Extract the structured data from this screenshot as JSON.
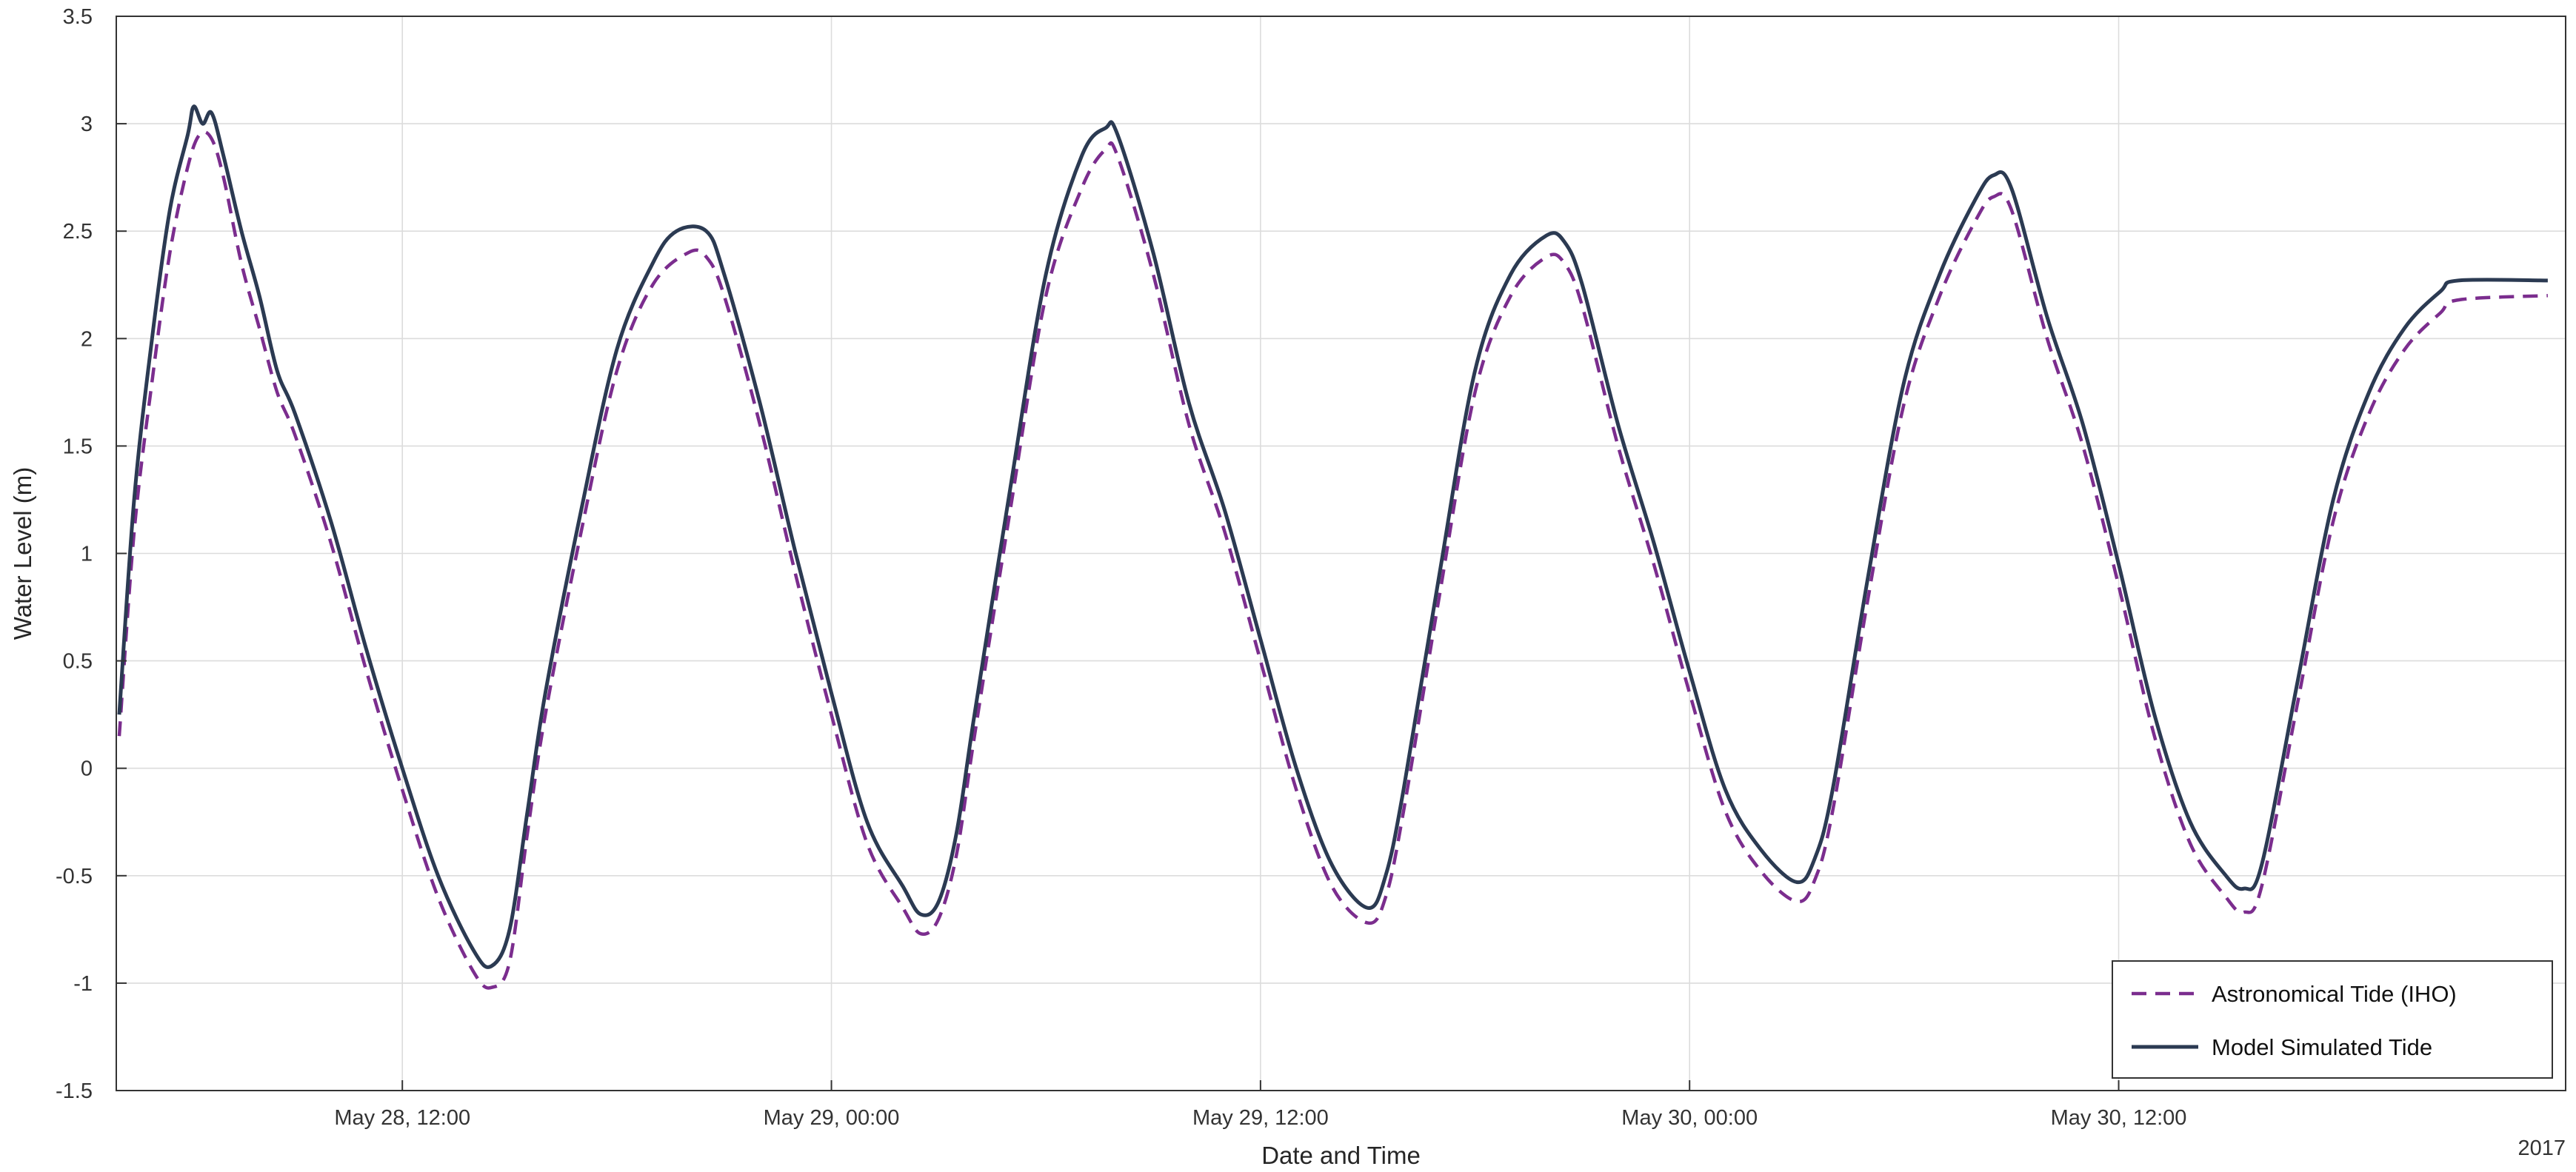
{
  "chart_data": {
    "type": "line",
    "title": "",
    "xlabel": "Date and Time",
    "ylabel": "Water Level (m)",
    "year_label": "2017",
    "grid": true,
    "legend_placement": "bottom-right",
    "xlim": [
      "2017-05-28T04:00",
      "2017-05-31T00:30"
    ],
    "ylim": [
      -1.5,
      3.5
    ],
    "x_ticks": [
      {
        "t": "2017-05-28T12:00",
        "label": "May 28, 12:00"
      },
      {
        "t": "2017-05-29T00:00",
        "label": "May 29, 00:00"
      },
      {
        "t": "2017-05-29T12:00",
        "label": "May 29, 12:00"
      },
      {
        "t": "2017-05-30T00:00",
        "label": "May 30, 00:00"
      },
      {
        "t": "2017-05-30T12:00",
        "label": "May 30, 12:00"
      }
    ],
    "y_ticks": [
      {
        "v": -1.5,
        "label": "-1.5"
      },
      {
        "v": -1,
        "label": "-1"
      },
      {
        "v": -0.5,
        "label": "-0.5"
      },
      {
        "v": 0,
        "label": "0"
      },
      {
        "v": 0.5,
        "label": "0.5"
      },
      {
        "v": 1,
        "label": "1"
      },
      {
        "v": 1.5,
        "label": "1.5"
      },
      {
        "v": 2,
        "label": "2"
      },
      {
        "v": 2.5,
        "label": "2.5"
      },
      {
        "v": 3,
        "label": "3"
      },
      {
        "v": 3.5,
        "label": "3.5"
      }
    ],
    "series": [
      {
        "name": "Astronomical Tide (IHO)",
        "color": "#7b2d8e",
        "style": "dashed",
        "points": [
          [
            "2017-05-28T04:05",
            0.15
          ],
          [
            "2017-05-28T04:30",
            1.1
          ],
          [
            "2017-05-28T05:00",
            1.8
          ],
          [
            "2017-05-28T05:30",
            2.4
          ],
          [
            "2017-05-28T06:00",
            2.8
          ],
          [
            "2017-05-28T06:20",
            2.95
          ],
          [
            "2017-05-28T06:40",
            2.93
          ],
          [
            "2017-05-28T07:00",
            2.75
          ],
          [
            "2017-05-28T07:30",
            2.35
          ],
          [
            "2017-05-28T08:00",
            2.05
          ],
          [
            "2017-05-28T08:30",
            1.75
          ],
          [
            "2017-05-28T09:00",
            1.55
          ],
          [
            "2017-05-28T10:00",
            1.05
          ],
          [
            "2017-05-28T11:00",
            0.45
          ],
          [
            "2017-05-28T12:00",
            -0.1
          ],
          [
            "2017-05-28T13:00",
            -0.6
          ],
          [
            "2017-05-28T14:00",
            -0.95
          ],
          [
            "2017-05-28T14:30",
            -1.02
          ],
          [
            "2017-05-28T15:00",
            -0.9
          ],
          [
            "2017-05-28T15:30",
            -0.3
          ],
          [
            "2017-05-28T16:00",
            0.25
          ],
          [
            "2017-05-28T17:00",
            1.1
          ],
          [
            "2017-05-28T18:00",
            1.85
          ],
          [
            "2017-05-28T19:00",
            2.25
          ],
          [
            "2017-05-28T20:00",
            2.4
          ],
          [
            "2017-05-28T20:30",
            2.38
          ],
          [
            "2017-05-28T21:00",
            2.2
          ],
          [
            "2017-05-28T22:00",
            1.6
          ],
          [
            "2017-05-28T23:00",
            0.9
          ],
          [
            "2017-05-29T00:00",
            0.25
          ],
          [
            "2017-05-29T01:00",
            -0.35
          ],
          [
            "2017-05-29T02:00",
            -0.65
          ],
          [
            "2017-05-29T02:30",
            -0.77
          ],
          [
            "2017-05-29T03:00",
            -0.7
          ],
          [
            "2017-05-29T03:30",
            -0.4
          ],
          [
            "2017-05-29T04:00",
            0.15
          ],
          [
            "2017-05-29T05:00",
            1.2
          ],
          [
            "2017-05-29T06:00",
            2.2
          ],
          [
            "2017-05-29T07:00",
            2.7
          ],
          [
            "2017-05-29T07:40",
            2.88
          ],
          [
            "2017-05-29T08:00",
            2.85
          ],
          [
            "2017-05-29T09:00",
            2.3
          ],
          [
            "2017-05-29T10:00",
            1.6
          ],
          [
            "2017-05-29T11:00",
            1.1
          ],
          [
            "2017-05-29T12:00",
            0.5
          ],
          [
            "2017-05-29T13:00",
            -0.1
          ],
          [
            "2017-05-29T14:00",
            -0.55
          ],
          [
            "2017-05-29T15:00",
            -0.72
          ],
          [
            "2017-05-29T15:30",
            -0.6
          ],
          [
            "2017-05-29T16:00",
            -0.2
          ],
          [
            "2017-05-29T17:00",
            0.8
          ],
          [
            "2017-05-29T18:00",
            1.75
          ],
          [
            "2017-05-29T19:00",
            2.2
          ],
          [
            "2017-05-29T20:00",
            2.38
          ],
          [
            "2017-05-29T20:30",
            2.35
          ],
          [
            "2017-05-29T21:00",
            2.15
          ],
          [
            "2017-05-29T22:00",
            1.5
          ],
          [
            "2017-05-29T23:00",
            0.95
          ],
          [
            "2017-05-30T00:00",
            0.35
          ],
          [
            "2017-05-30T01:00",
            -0.2
          ],
          [
            "2017-05-30T02:00",
            -0.48
          ],
          [
            "2017-05-30T03:00",
            -0.62
          ],
          [
            "2017-05-30T03:30",
            -0.52
          ],
          [
            "2017-05-30T04:00",
            -0.2
          ],
          [
            "2017-05-30T05:00",
            0.8
          ],
          [
            "2017-05-30T06:00",
            1.7
          ],
          [
            "2017-05-30T07:00",
            2.2
          ],
          [
            "2017-05-30T08:00",
            2.55
          ],
          [
            "2017-05-30T08:30",
            2.66
          ],
          [
            "2017-05-30T09:00",
            2.6
          ],
          [
            "2017-05-30T10:00",
            2.0
          ],
          [
            "2017-05-30T11:00",
            1.5
          ],
          [
            "2017-05-30T12:00",
            0.85
          ],
          [
            "2017-05-30T13:00",
            0.15
          ],
          [
            "2017-05-30T14:00",
            -0.35
          ],
          [
            "2017-05-30T15:00",
            -0.6
          ],
          [
            "2017-05-30T15:30",
            -0.67
          ],
          [
            "2017-05-30T16:00",
            -0.55
          ],
          [
            "2017-05-30T17:00",
            0.3
          ],
          [
            "2017-05-30T18:00",
            1.15
          ],
          [
            "2017-05-30T19:00",
            1.65
          ],
          [
            "2017-05-30T20:00",
            1.95
          ],
          [
            "2017-05-30T21:00",
            2.12
          ],
          [
            "2017-05-30T21:30",
            2.18
          ],
          [
            "2017-05-31T00:00",
            2.2
          ]
        ]
      },
      {
        "name": "Model Simulated Tide",
        "color": "#2b3a52",
        "style": "solid",
        "points": [
          [
            "2017-05-28T04:05",
            0.25
          ],
          [
            "2017-05-28T04:30",
            1.25
          ],
          [
            "2017-05-28T05:00",
            2.0
          ],
          [
            "2017-05-28T05:30",
            2.6
          ],
          [
            "2017-05-28T06:00",
            2.95
          ],
          [
            "2017-05-28T06:10",
            3.08
          ],
          [
            "2017-05-28T06:25",
            3.0
          ],
          [
            "2017-05-28T06:40",
            3.05
          ],
          [
            "2017-05-28T07:00",
            2.85
          ],
          [
            "2017-05-28T07:30",
            2.5
          ],
          [
            "2017-05-28T08:00",
            2.2
          ],
          [
            "2017-05-28T08:30",
            1.85
          ],
          [
            "2017-05-28T09:00",
            1.65
          ],
          [
            "2017-05-28T10:00",
            1.15
          ],
          [
            "2017-05-28T11:00",
            0.55
          ],
          [
            "2017-05-28T12:00",
            0.0
          ],
          [
            "2017-05-28T13:00",
            -0.5
          ],
          [
            "2017-05-28T14:00",
            -0.85
          ],
          [
            "2017-05-28T14:30",
            -0.92
          ],
          [
            "2017-05-28T15:00",
            -0.75
          ],
          [
            "2017-05-28T15:30",
            -0.2
          ],
          [
            "2017-05-28T16:00",
            0.35
          ],
          [
            "2017-05-28T17:00",
            1.2
          ],
          [
            "2017-05-28T18:00",
            1.95
          ],
          [
            "2017-05-28T19:00",
            2.35
          ],
          [
            "2017-05-28T19:40",
            2.5
          ],
          [
            "2017-05-28T20:30",
            2.5
          ],
          [
            "2017-05-28T21:00",
            2.3
          ],
          [
            "2017-05-28T22:00",
            1.7
          ],
          [
            "2017-05-28T23:00",
            1.0
          ],
          [
            "2017-05-29T00:00",
            0.35
          ],
          [
            "2017-05-29T01:00",
            -0.25
          ],
          [
            "2017-05-29T02:00",
            -0.55
          ],
          [
            "2017-05-29T02:30",
            -0.68
          ],
          [
            "2017-05-29T03:00",
            -0.62
          ],
          [
            "2017-05-29T03:30",
            -0.3
          ],
          [
            "2017-05-29T04:00",
            0.25
          ],
          [
            "2017-05-29T05:00",
            1.3
          ],
          [
            "2017-05-29T06:00",
            2.3
          ],
          [
            "2017-05-29T07:00",
            2.85
          ],
          [
            "2017-05-29T07:40",
            2.98
          ],
          [
            "2017-05-29T08:00",
            2.95
          ],
          [
            "2017-05-29T09:00",
            2.4
          ],
          [
            "2017-05-29T10:00",
            1.7
          ],
          [
            "2017-05-29T11:00",
            1.2
          ],
          [
            "2017-05-29T12:00",
            0.6
          ],
          [
            "2017-05-29T13:00",
            0.0
          ],
          [
            "2017-05-29T14:00",
            -0.45
          ],
          [
            "2017-05-29T15:00",
            -0.65
          ],
          [
            "2017-05-29T15:30",
            -0.5
          ],
          [
            "2017-05-29T16:00",
            -0.1
          ],
          [
            "2017-05-29T17:00",
            0.9
          ],
          [
            "2017-05-29T18:00",
            1.85
          ],
          [
            "2017-05-29T19:00",
            2.3
          ],
          [
            "2017-05-29T20:00",
            2.48
          ],
          [
            "2017-05-29T20:30",
            2.45
          ],
          [
            "2017-05-29T21:00",
            2.25
          ],
          [
            "2017-05-29T22:00",
            1.6
          ],
          [
            "2017-05-29T23:00",
            1.05
          ],
          [
            "2017-05-30T00:00",
            0.45
          ],
          [
            "2017-05-30T01:00",
            -0.1
          ],
          [
            "2017-05-30T02:00",
            -0.38
          ],
          [
            "2017-05-30T03:00",
            -0.53
          ],
          [
            "2017-05-30T03:30",
            -0.42
          ],
          [
            "2017-05-30T04:00",
            -0.1
          ],
          [
            "2017-05-30T05:00",
            0.9
          ],
          [
            "2017-05-30T06:00",
            1.8
          ],
          [
            "2017-05-30T07:00",
            2.3
          ],
          [
            "2017-05-30T08:00",
            2.65
          ],
          [
            "2017-05-30T08:30",
            2.76
          ],
          [
            "2017-05-30T09:00",
            2.7
          ],
          [
            "2017-05-30T10:00",
            2.1
          ],
          [
            "2017-05-30T11:00",
            1.6
          ],
          [
            "2017-05-30T12:00",
            0.95
          ],
          [
            "2017-05-30T13:00",
            0.25
          ],
          [
            "2017-05-30T14:00",
            -0.25
          ],
          [
            "2017-05-30T15:00",
            -0.5
          ],
          [
            "2017-05-30T15:30",
            -0.56
          ],
          [
            "2017-05-30T16:00",
            -0.45
          ],
          [
            "2017-05-30T17:00",
            0.4
          ],
          [
            "2017-05-30T18:00",
            1.25
          ],
          [
            "2017-05-30T19:00",
            1.75
          ],
          [
            "2017-05-30T20:00",
            2.05
          ],
          [
            "2017-05-30T21:00",
            2.22
          ],
          [
            "2017-05-30T21:30",
            2.27
          ],
          [
            "2017-05-31T00:00",
            2.27
          ]
        ]
      }
    ]
  }
}
